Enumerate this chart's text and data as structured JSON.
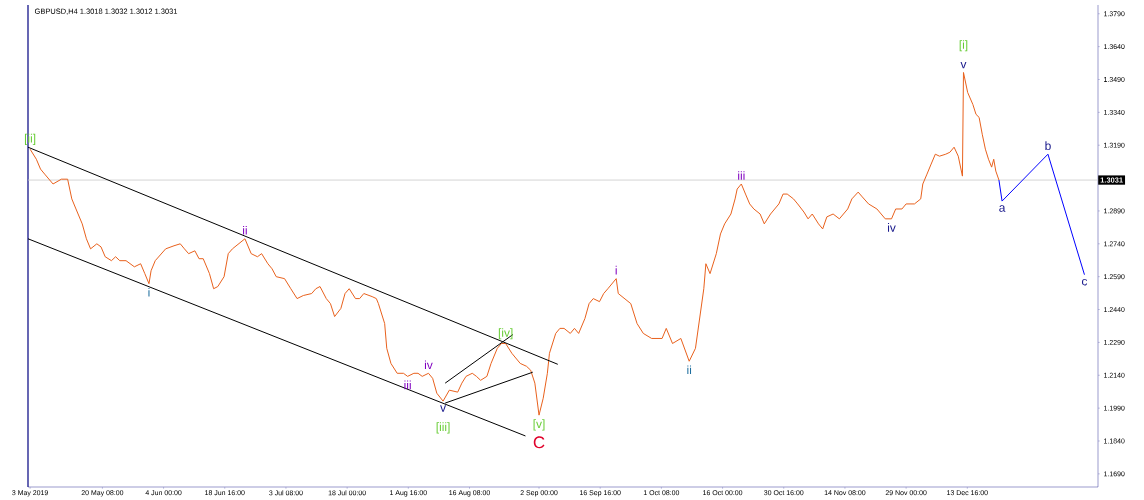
{
  "chart_data": {
    "type": "line",
    "title": "GBPUSD,H4 1.3018 1.3032 1.3012 1.3031",
    "xlim": [
      "2019-05-02T12:00",
      "2020-01-14T00:00"
    ],
    "ylim": [
      1.163,
      1.383
    ],
    "xticks": [
      {
        "value": "2019-05-03T00:00",
        "label": "3 May 2019"
      },
      {
        "value": "2019-05-20T08:00",
        "label": "20 May 08:00"
      },
      {
        "value": "2019-06-04T00:00",
        "label": "4 Jun 00:00"
      },
      {
        "value": "2019-06-18T16:00",
        "label": "18 Jun 16:00"
      },
      {
        "value": "2019-07-03T08:00",
        "label": "3 Jul 08:00"
      },
      {
        "value": "2019-07-18T00:00",
        "label": "18 Jul 00:00"
      },
      {
        "value": "2019-08-01T16:00",
        "label": "1 Aug 16:00"
      },
      {
        "value": "2019-08-16T08:00",
        "label": "16 Aug 08:00"
      },
      {
        "value": "2019-09-02T00:00",
        "label": "2 Sep 00:00"
      },
      {
        "value": "2019-09-16T16:00",
        "label": "16 Sep 16:00"
      },
      {
        "value": "2019-10-01T08:00",
        "label": "1 Oct 08:00"
      },
      {
        "value": "2019-10-16T00:00",
        "label": "16 Oct 00:00"
      },
      {
        "value": "2019-10-30T16:00",
        "label": "30 Oct 16:00"
      },
      {
        "value": "2019-11-14T08:00",
        "label": "14 Nov 08:00"
      },
      {
        "value": "2019-11-29T00:00",
        "label": "29 Nov 00:00"
      },
      {
        "value": "2019-12-13T16:00",
        "label": "13 Dec 16:00"
      }
    ],
    "yticks": [
      {
        "value": 1.169,
        "label": "1.1690"
      },
      {
        "value": 1.184,
        "label": "1.1840"
      },
      {
        "value": 1.199,
        "label": "1.1990"
      },
      {
        "value": 1.214,
        "label": "1.2140"
      },
      {
        "value": 1.229,
        "label": "1.2290"
      },
      {
        "value": 1.244,
        "label": "1.2440"
      },
      {
        "value": 1.259,
        "label": "1.2590"
      },
      {
        "value": 1.274,
        "label": "1.2740"
      },
      {
        "value": 1.289,
        "label": "1.2890"
      },
      {
        "value": 1.304,
        "label": null
      },
      {
        "value": 1.319,
        "label": "1.3190"
      },
      {
        "value": 1.334,
        "label": "1.3340"
      },
      {
        "value": 1.349,
        "label": "1.3490"
      },
      {
        "value": 1.364,
        "label": "1.3640"
      },
      {
        "value": 1.379,
        "label": "1.3790"
      }
    ],
    "series": [
      {
        "color": "#e8601c",
        "x": [
          "2019-05-03T00:00",
          "2019-05-04T12:00",
          "2019-05-05T12:00",
          "2019-05-06T12:00",
          "2019-05-08T12:00",
          "2019-05-10T12:00",
          "2019-05-12T00:00",
          "2019-05-13T00:00",
          "2019-05-14T00:00",
          "2019-05-15T12:00",
          "2019-05-16T12:00",
          "2019-05-17T12:00",
          "2019-05-19T00:00",
          "2019-05-20T00:00",
          "2019-05-21T00:00",
          "2019-05-22T12:00",
          "2019-05-23T12:00",
          "2019-05-24T12:00",
          "2019-05-26T00:00",
          "2019-05-28T00:00",
          "2019-05-29T12:00",
          "2019-05-30T12:00",
          "2019-05-31T12:00",
          "2019-06-01T00:00",
          "2019-06-02T00:00",
          "2019-06-04T12:00",
          "2019-06-06T12:00",
          "2019-06-08T00:00",
          "2019-06-09T00:00",
          "2019-06-10T00:00",
          "2019-06-11T12:00",
          "2019-06-12T12:00",
          "2019-06-13T12:00",
          "2019-06-15T00:00",
          "2019-06-16T00:00",
          "2019-06-17T00:00",
          "2019-06-18T12:00",
          "2019-06-19T12:00",
          "2019-06-20T12:00",
          "2019-06-22T00:00",
          "2019-06-23T12:00",
          "2019-06-25T00:00",
          "2019-06-26T12:00",
          "2019-06-27T12:00",
          "2019-06-29T00:00",
          "2019-06-30T00:00",
          "2019-07-01T00:00",
          "2019-07-03T00:00",
          "2019-07-04T12:00",
          "2019-07-06T00:00",
          "2019-07-07T12:00",
          "2019-07-09T12:00",
          "2019-07-10T12:00",
          "2019-07-11T12:00",
          "2019-07-13T00:00",
          "2019-07-14T00:00",
          "2019-07-15T00:00",
          "2019-07-16T12:00",
          "2019-07-17T12:00",
          "2019-07-18T12:00",
          "2019-07-20T00:00",
          "2019-07-21T00:00",
          "2019-07-22T00:00",
          "2019-07-24T00:00",
          "2019-07-25T00:00",
          "2019-07-25T12:00",
          "2019-07-27T00:00",
          "2019-07-27T12:00",
          "2019-07-28T12:00",
          "2019-07-30T00:00",
          "2019-07-31T12:00",
          "2019-08-01T12:00",
          "2019-08-03T00:00",
          "2019-08-04T00:00",
          "2019-08-05T00:00",
          "2019-08-06T12:00",
          "2019-08-07T12:00",
          "2019-08-08T12:00",
          "2019-08-10T00:00",
          "2019-08-11T12:00",
          "2019-08-13T12:00",
          "2019-08-14T12:00",
          "2019-08-15T12:00",
          "2019-08-17T00:00",
          "2019-08-18T00:00",
          "2019-08-19T00:00",
          "2019-08-20T12:00",
          "2019-08-21T12:00",
          "2019-08-23T00:00",
          "2019-08-24T00:00",
          "2019-08-25T00:00",
          "2019-08-26T12:00",
          "2019-08-27T12:00",
          "2019-08-28T12:00",
          "2019-08-30T00:00",
          "2019-08-31T00:00",
          "2019-09-01T00:00",
          "2019-09-02T00:00",
          "2019-09-03T00:00",
          "2019-09-04T00:00",
          "2019-09-04T12:00",
          "2019-09-06T00:00",
          "2019-09-07T00:00",
          "2019-09-08T00:00",
          "2019-09-09T12:00",
          "2019-09-10T12:00",
          "2019-09-11T12:00",
          "2019-09-13T00:00",
          "2019-09-14T00:00",
          "2019-09-15T00:00",
          "2019-09-16T12:00",
          "2019-09-17T12:00",
          "2019-09-18T12:00",
          "2019-09-20T12:00",
          "2019-09-21T00:00",
          "2019-09-22T12:00",
          "2019-09-24T00:00",
          "2019-09-25T12:00",
          "2019-09-27T00:00",
          "2019-09-29T00:00",
          "2019-10-01T12:00",
          "2019-10-02T12:00",
          "2019-10-04T00:00",
          "2019-10-06T00:00",
          "2019-10-08T00:00",
          "2019-10-09T12:00",
          "2019-10-10T12:00",
          "2019-10-11T12:00",
          "2019-10-12T00:00",
          "2019-10-13T00:00",
          "2019-10-14T12:00",
          "2019-10-15T12:00",
          "2019-10-16T12:00",
          "2019-10-18T00:00",
          "2019-10-19T00:00",
          "2019-10-19T12:00",
          "2019-10-20T12:00",
          "2019-10-21T12:00",
          "2019-10-22T12:00",
          "2019-10-23T12:00",
          "2019-10-25T00:00",
          "2019-10-26T00:00",
          "2019-10-27T12:00",
          "2019-10-29T12:00",
          "2019-10-30T12:00",
          "2019-10-31T12:00",
          "2019-11-02T00:00",
          "2019-11-03T00:00",
          "2019-11-04T12:00",
          "2019-11-05T12:00",
          "2019-11-06T12:00",
          "2019-11-08T00:00",
          "2019-11-09T00:00",
          "2019-11-10T00:00",
          "2019-11-11T12:00",
          "2019-11-13T00:00",
          "2019-11-15T00:00",
          "2019-11-16T00:00",
          "2019-11-17T12:00",
          "2019-11-18T12:00",
          "2019-11-20T00:00",
          "2019-11-22T00:00",
          "2019-11-24T00:00",
          "2019-11-25T12:00",
          "2019-11-26T12:00",
          "2019-11-28T00:00",
          "2019-11-29T00:00",
          "2019-12-01T00:00",
          "2019-12-02T12:00",
          "2019-12-03T00:00",
          "2019-12-04T00:00",
          "2019-12-05T00:00",
          "2019-12-06T00:00",
          "2019-12-07T00:00",
          "2019-12-08T12:00",
          "2019-12-09T12:00",
          "2019-12-10T12:00",
          "2019-12-11T12:00",
          "2019-12-12T12:00",
          "2019-12-12T18:00",
          "2019-12-13T18:00",
          "2019-12-15T00:00",
          "2019-12-15T18:00",
          "2019-12-16T12:00",
          "2019-12-17T06:00",
          "2019-12-18T00:00",
          "2019-12-18T18:00",
          "2019-12-19T12:00",
          "2019-12-20T00:00",
          "2019-12-20T12:00",
          "2019-12-21T06:00"
        ],
        "values": [
          1.3172,
          1.3126,
          1.3081,
          1.3058,
          1.3013,
          1.3035,
          1.3035,
          1.2945,
          1.2899,
          1.2831,
          1.2763,
          1.2717,
          1.274,
          1.2726,
          1.2681,
          1.2663,
          1.2681,
          1.2663,
          1.2663,
          1.2635,
          1.2649,
          1.2604,
          1.2558,
          1.2617,
          1.2663,
          1.2717,
          1.2731,
          1.274,
          1.2717,
          1.2695,
          1.2708,
          1.2672,
          1.2672,
          1.2604,
          1.2535,
          1.2545,
          1.259,
          1.2695,
          1.2717,
          1.274,
          1.2763,
          1.2695,
          1.2681,
          1.2695,
          1.2649,
          1.2626,
          1.259,
          1.2581,
          1.2535,
          1.249,
          1.2504,
          1.2513,
          1.2535,
          1.2545,
          1.249,
          1.2467,
          1.2408,
          1.2445,
          1.2513,
          1.2535,
          1.249,
          1.249,
          1.2513,
          1.2499,
          1.249,
          1.2467,
          1.2376,
          1.2263,
          1.2194,
          1.2149,
          1.2149,
          1.2135,
          1.2149,
          1.2149,
          1.2135,
          1.2149,
          1.2126,
          1.2058,
          1.2022,
          1.2072,
          1.2063,
          1.2104,
          1.2135,
          1.2149,
          1.2135,
          1.2117,
          1.2135,
          1.2194,
          1.2263,
          1.2285,
          1.2285,
          1.224,
          1.2217,
          1.2194,
          1.2181,
          1.2163,
          1.2104,
          1.1958,
          1.2035,
          1.2149,
          1.224,
          1.2331,
          1.2354,
          1.2354,
          1.2331,
          1.2354,
          1.2331,
          1.2399,
          1.2467,
          1.249,
          1.2476,
          1.2513,
          1.2535,
          1.2581,
          1.2513,
          1.249,
          1.2467,
          1.2376,
          1.2331,
          1.2308,
          1.2308,
          1.2354,
          1.2285,
          1.2308,
          1.2204,
          1.2263,
          1.2399,
          1.2535,
          1.2649,
          1.2604,
          1.2695,
          1.2785,
          1.2831,
          1.2876,
          1.2945,
          1.299,
          1.3013,
          1.2967,
          1.2922,
          1.2899,
          1.2876,
          1.2831,
          1.2876,
          1.2922,
          1.2967,
          1.2967,
          1.2945,
          1.2922,
          1.2885,
          1.2854,
          1.2876,
          1.2831,
          1.2808,
          1.2863,
          1.2876,
          1.2854,
          1.2899,
          1.2945,
          1.2976,
          1.2954,
          1.2922,
          1.2899,
          1.2854,
          1.2854,
          1.2899,
          1.2899,
          1.2922,
          1.2922,
          1.2945,
          1.3013,
          1.3058,
          1.3104,
          1.3149,
          1.314,
          1.3149,
          1.3158,
          1.3181,
          1.314,
          1.3049,
          1.3522,
          1.3431,
          1.3376,
          1.3331,
          1.3317,
          1.324,
          1.3172,
          1.3126,
          1.309,
          1.3126,
          1.3072,
          1.3031
        ]
      },
      {
        "color": "#000000",
        "x": [
          "2019-05-02T12:00",
          "2019-09-06T12:00"
        ],
        "values": [
          1.3181,
          1.219
        ]
      },
      {
        "color": "#000000",
        "x": [
          "2019-05-02T12:00",
          "2019-08-29T18:00"
        ],
        "values": [
          1.2763,
          1.1863
        ]
      },
      {
        "color": "#000000",
        "x": [
          "2019-08-10T12:00",
          "2019-08-26T18:00"
        ],
        "values": [
          1.2104,
          1.2326
        ]
      },
      {
        "color": "#000000",
        "x": [
          "2019-08-10T12:00",
          "2019-08-31T12:00"
        ],
        "values": [
          1.2013,
          1.2154
        ]
      },
      {
        "color": "#0000ff",
        "x": [
          "2019-12-21T06:00",
          "2019-12-22T00:00",
          "2020-01-02T00:00",
          "2020-01-10T18:00"
        ],
        "values": [
          1.3031,
          1.2935,
          1.3149,
          1.2599
        ]
      }
    ],
    "ref_lines": [
      {
        "axis": "y",
        "value": 1.3031,
        "label": "1.3031",
        "color": "#c8c8c8"
      }
    ],
    "annotations": [
      {
        "text": "[ii]",
        "x": "2019-05-03T00:00",
        "y": 1.3172
      },
      {
        "text": "i",
        "x": "2019-05-31T12:00",
        "y": 1.2558
      },
      {
        "text": "ii",
        "x": "2019-06-23T12:00",
        "y": 1.2763
      },
      {
        "text": "iii",
        "x": "2019-08-01T12:00",
        "y": 1.2135
      },
      {
        "text": "iv",
        "x": "2019-08-06T12:00",
        "y": 1.2149
      },
      {
        "text": "v",
        "x": "2019-08-10T00:00",
        "y": 1.2022
      },
      {
        "text": "[iii]",
        "x": "2019-08-10T00:00",
        "y": 1.2022
      },
      {
        "text": "[iv]",
        "x": "2019-08-25T00:00",
        "y": 1.2285
      },
      {
        "text": "[v]",
        "x": "2019-09-02T00:00",
        "y": 1.1958
      },
      {
        "text": "C",
        "x": "2019-09-02T00:00",
        "y": 1.1958
      },
      {
        "text": "i",
        "x": "2019-09-20T12:00",
        "y": 1.2581
      },
      {
        "text": "ii",
        "x": "2019-10-08T00:00",
        "y": 1.2204
      },
      {
        "text": "iii",
        "x": "2019-10-20T12:00",
        "y": 1.3013
      },
      {
        "text": "iv",
        "x": "2019-11-25T12:00",
        "y": 1.2854
      },
      {
        "text": "v",
        "x": "2019-12-12T18:00",
        "y": 1.3522
      },
      {
        "text": "[i]",
        "x": "2019-12-12T18:00",
        "y": 1.3522
      },
      {
        "text": "a",
        "x": "2019-12-22T00:00",
        "y": 1.2935
      },
      {
        "text": "b",
        "x": "2020-01-02T00:00",
        "y": 1.3149
      },
      {
        "text": "c",
        "x": "2020-01-10T18:00",
        "y": 1.2599
      }
    ]
  }
}
